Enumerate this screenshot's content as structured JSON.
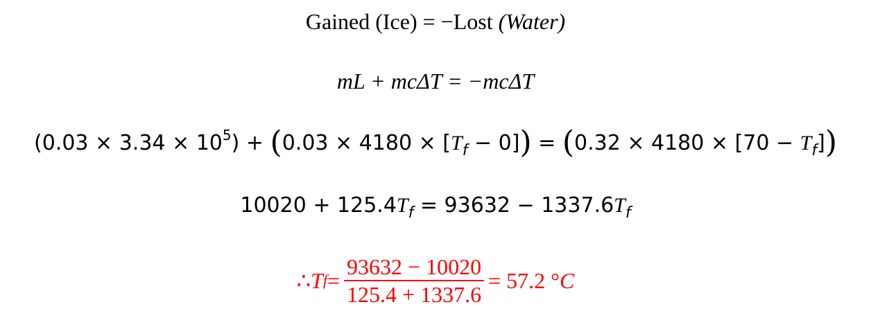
{
  "equations": {
    "line1": {
      "gained": "Gained (Ice)",
      "eq": " = −",
      "lost": "Lost ",
      "water": "(Water)"
    },
    "line2": {
      "text": "mL + mcΔT = −mcΔT"
    },
    "line3": {
      "part1": "(0.03 × 3.34 × 10",
      "exp": "5",
      "part2": ") + ",
      "open1": "(",
      "part3": "0.03 × 4180 × [",
      "tf1": "T",
      "tfsub1": "f",
      "part4": " − 0]",
      "close1": ")",
      "eq": " = ",
      "open2": "(",
      "part5": "0.32 × 4180 × [70 − ",
      "tf2": "T",
      "tfsub2": "f",
      "part6": "]",
      "close2": ")"
    },
    "line4": {
      "left": "10020 + 125.4",
      "tf1": "T",
      "tfsub1": "f",
      "mid": " = 93632 − 1337.6",
      "tf2": "T",
      "tfsub2": "f"
    },
    "line5": {
      "therefore": "∴ ",
      "tf": "T",
      "tfsub": "f",
      "eq": " =",
      "numerator": "93632 − 10020",
      "denominator": "125.4 + 1337.6",
      "result": "= 57.2 °",
      "unit": "C"
    }
  },
  "colors": {
    "text": "#000000",
    "answer": "#ff0000"
  }
}
